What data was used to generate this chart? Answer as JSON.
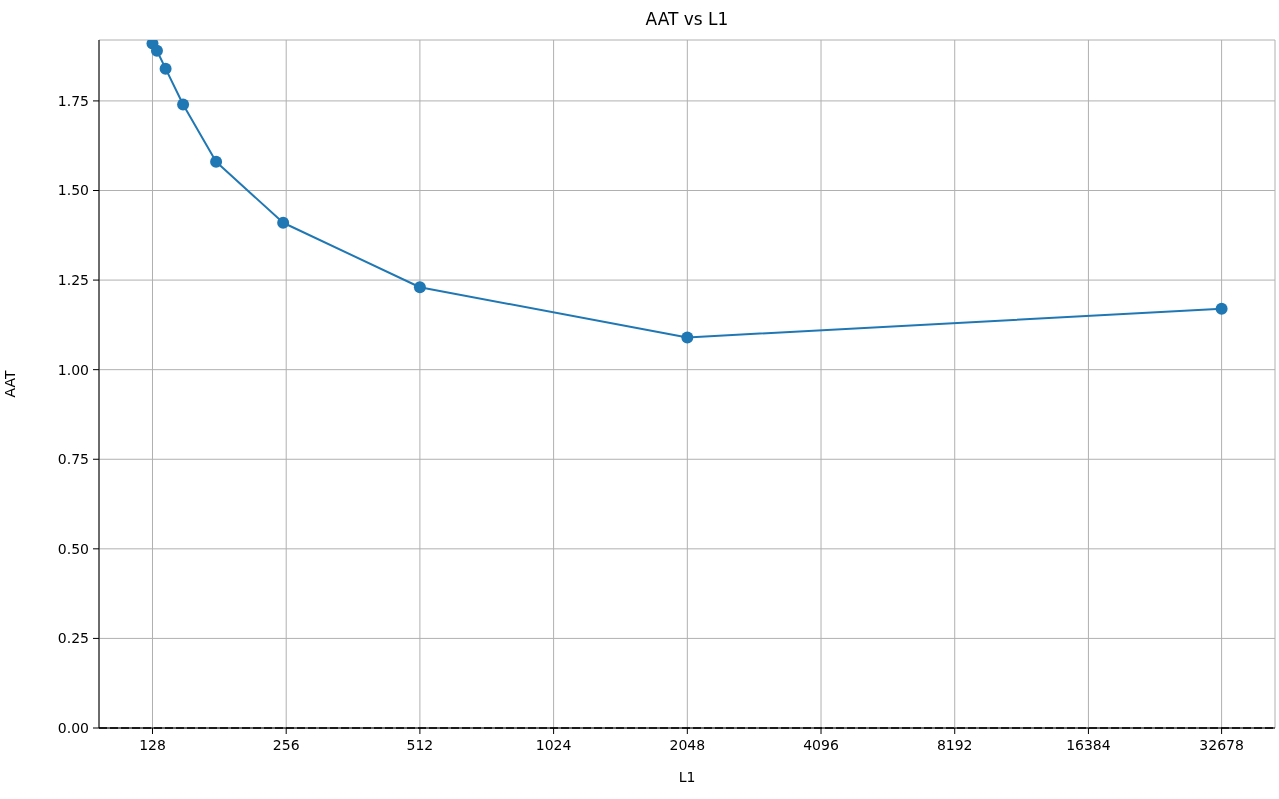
{
  "chart_data": {
    "type": "line",
    "title": "AAT vs L1",
    "xlabel": "L1",
    "ylabel": "AAT",
    "x": [
      128,
      131,
      137,
      150,
      178,
      252,
      512,
      2048,
      32678
    ],
    "series": [
      {
        "color": "#1f77b4",
        "values": [
          1.91,
          1.89,
          1.84,
          1.74,
          1.58,
          1.41,
          1.23,
          1.09,
          1.17
        ]
      }
    ],
    "xlim": [
      97,
      43100
    ],
    "ylim": [
      0,
      1.92
    ],
    "xticks": [
      128,
      256,
      512,
      1024,
      2048,
      4096,
      8192,
      16384,
      32678
    ],
    "yticks": [
      {
        "value": 0,
        "label": "0.00"
      },
      0.25,
      {
        "value": 0.5,
        "label": "0.50"
      },
      0.75,
      {
        "value": 1,
        "label": "1.00"
      },
      1.25,
      {
        "value": 1.5,
        "label": "1.50"
      },
      1.75
    ],
    "log": "x",
    "grid": true,
    "marker": "circle",
    "line_style": "solid",
    "ref_lines": [
      {
        "axis": "y",
        "value": 0,
        "color": "#000000",
        "line_style": "dashed"
      }
    ]
  }
}
